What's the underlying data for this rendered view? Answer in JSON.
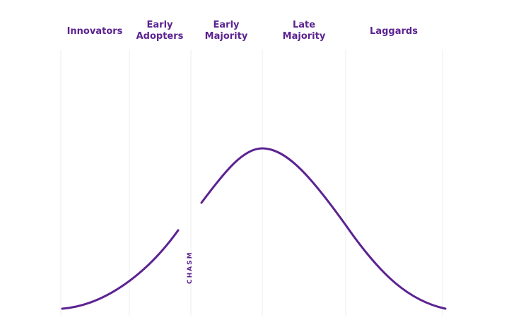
{
  "segments": [
    [
      "Innovators"
    ],
    [
      "Early",
      "Adopters"
    ],
    [
      "Early",
      "Majority"
    ],
    [
      "Late",
      "Majority"
    ],
    [
      "Laggards"
    ]
  ],
  "chasm": "CHASM"
}
